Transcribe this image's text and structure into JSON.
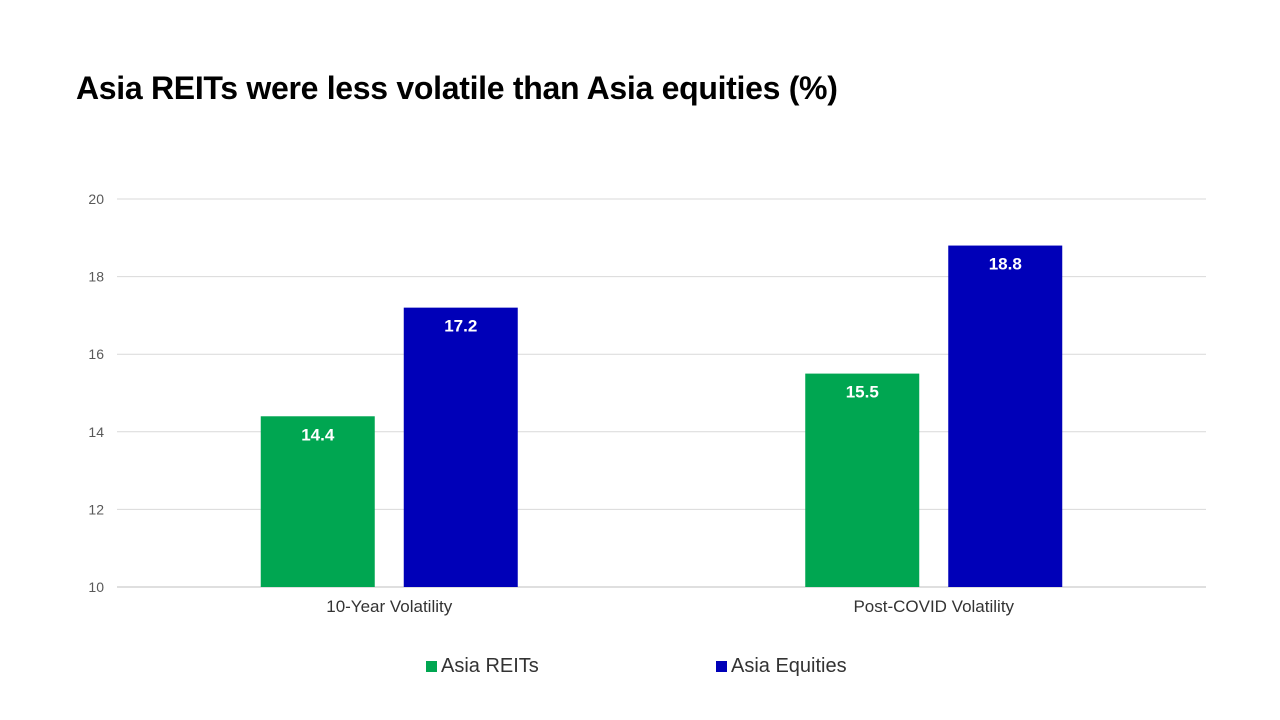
{
  "chart_data": {
    "type": "bar",
    "title": "Asia REITs were less volatile than Asia equities (%)",
    "categories": [
      "10-Year Volatility",
      "Post-COVID Volatility"
    ],
    "series": [
      {
        "name": "Asia REITs",
        "values": [
          14.4,
          15.5
        ],
        "color": "#00a651"
      },
      {
        "name": "Asia Equities",
        "values": [
          17.2,
          18.8
        ],
        "color": "#0000b8"
      }
    ],
    "ylim": [
      10,
      20
    ],
    "yticks": [
      "10",
      "12",
      "14",
      "16",
      "18",
      "20"
    ],
    "grid": true,
    "legend": "bottom",
    "data_labels": [
      "14.4",
      "17.2",
      "15.5",
      "18.8"
    ]
  }
}
